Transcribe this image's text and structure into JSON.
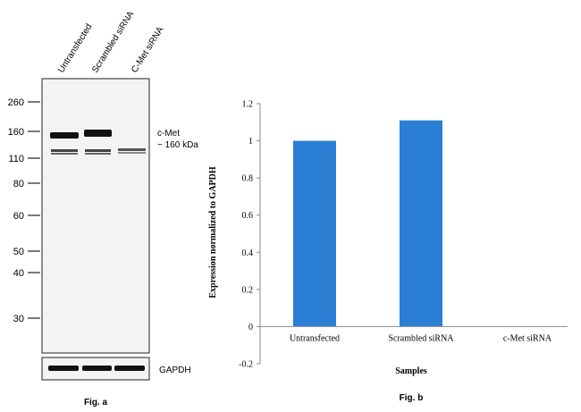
{
  "blot": {
    "lanes": [
      "Untransfected",
      "Scrambled siRNA",
      "C-Met siRNA"
    ],
    "markers": [
      "260",
      "160",
      "110",
      "80",
      "60",
      "50",
      "40",
      "30"
    ],
    "band_label": "c-Met",
    "band_size": "~ 160 kDa",
    "loading_control": "GAPDH",
    "caption": "Fig. a"
  },
  "chart_data": {
    "type": "bar",
    "categories": [
      "Untransfected",
      "Scrambled siRNA",
      "c-Met siRNA"
    ],
    "values": [
      1,
      1.11,
      0
    ],
    "color": "#2a7fd4",
    "ylim": [
      -0.2,
      1.2
    ],
    "yticks": [
      -0.2,
      0,
      0.2,
      0.4,
      0.6,
      0.8,
      1,
      1.2
    ],
    "x_label": "Samples",
    "y_label": "Expression normalized to GAPDH",
    "caption": "Fig. b"
  }
}
